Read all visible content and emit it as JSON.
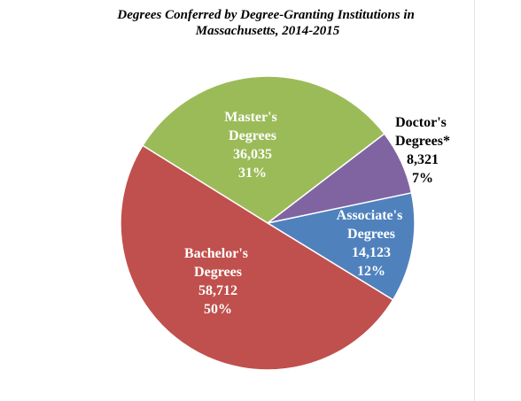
{
  "chart_data": {
    "type": "pie",
    "title": "Degrees Conferred by Degree-Granting Institutions in Massachusetts, 2014-2015",
    "categories": [
      "Associate's Degrees",
      "Doctor's Degrees*",
      "Master's Degrees",
      "Bachelor's Degrees"
    ],
    "values": [
      14123,
      8321,
      36035,
      58712
    ],
    "value_labels": [
      "14,123",
      "8,321",
      "36,035",
      "58,712"
    ],
    "percent_labels": [
      "12%",
      "7%",
      "31%",
      "50%"
    ],
    "colors": [
      "#4f81bd",
      "#8064a2",
      "#9bbb59",
      "#c0504d"
    ],
    "label_colors": [
      "#ffffff",
      "#000000",
      "#ffffff",
      "#ffffff"
    ]
  }
}
